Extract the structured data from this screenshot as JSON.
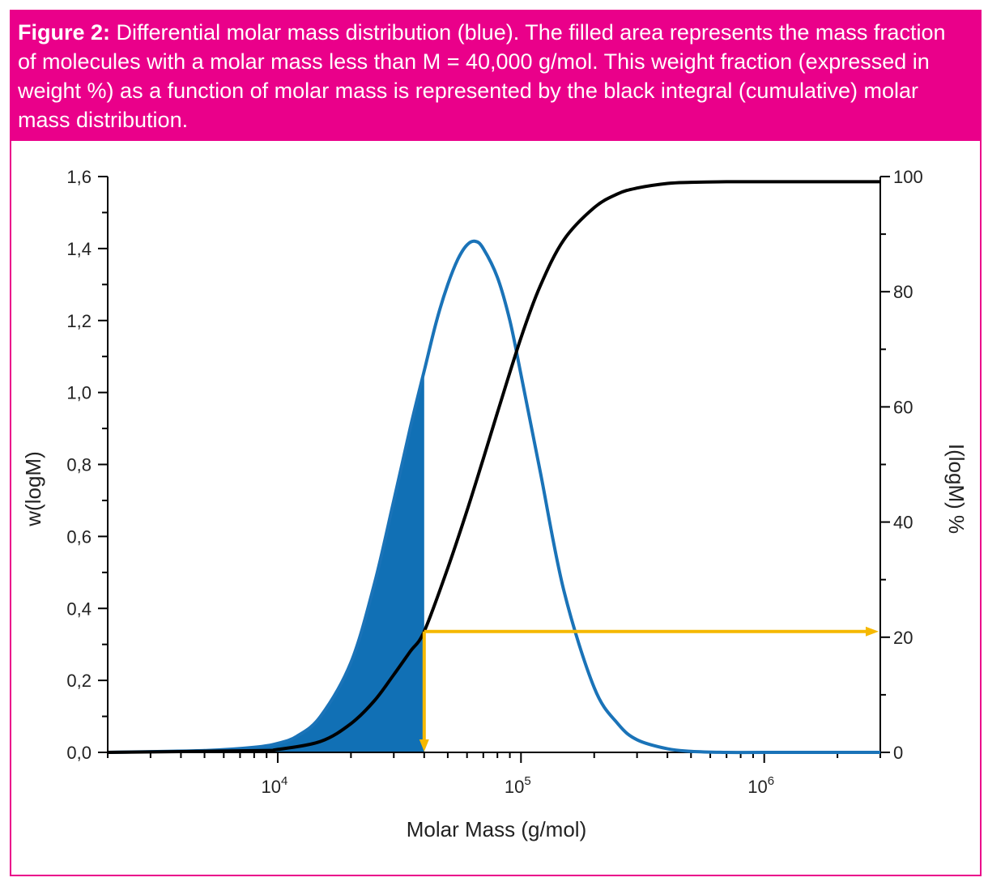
{
  "caption": {
    "label": "Figure 2:",
    "text": " Differential molar mass distribution (blue). The filled area represents the mass fraction of molecules with a molar mass less than M = 40,000 g/mol. This weight fraction (expressed in weight %) as a function of molar mass is represented by the black integral (cumulative) molar mass distribution."
  },
  "colors": {
    "frame": "#ea008a",
    "differential": "#1a73b8",
    "fill": "#1170b5",
    "cumulative": "#000000",
    "marker": "#f5b800"
  },
  "chart_data": {
    "type": "line",
    "xlabel": "Molar Mass (g/mol)",
    "ylabel": "w(logM)",
    "y2label": "I(logM) %",
    "x_scale": "log",
    "xlim": [
      2000,
      3000000
    ],
    "ylim": [
      0,
      1.6
    ],
    "y2lim": [
      0,
      100
    ],
    "x_ticks": [
      {
        "value": 10000,
        "base": "10",
        "exp": "4"
      },
      {
        "value": 100000,
        "base": "10",
        "exp": "5"
      },
      {
        "value": 1000000,
        "base": "10",
        "exp": "6"
      }
    ],
    "y_ticks": [
      {
        "value": 0,
        "label": "0,0"
      },
      {
        "value": 0.2,
        "label": "0,2"
      },
      {
        "value": 0.4,
        "label": "0,4"
      },
      {
        "value": 0.6,
        "label": "0,6"
      },
      {
        "value": 0.8,
        "label": "0,8"
      },
      {
        "value": 1.0,
        "label": "1,0"
      },
      {
        "value": 1.2,
        "label": "1,2"
      },
      {
        "value": 1.4,
        "label": "1,4"
      },
      {
        "value": 1.6,
        "label": "1,6"
      }
    ],
    "y2_ticks": [
      {
        "value": 0,
        "label": "0"
      },
      {
        "value": 20,
        "label": "20"
      },
      {
        "value": 40,
        "label": "40"
      },
      {
        "value": 60,
        "label": "60"
      },
      {
        "value": 80,
        "label": "80"
      },
      {
        "value": 100,
        "label": "100"
      }
    ],
    "series": [
      {
        "axis": "left",
        "x": [
          2000,
          5000,
          8000,
          10000,
          12000,
          15000,
          20000,
          25000,
          30000,
          35000,
          40000,
          45000,
          50000,
          55000,
          60000,
          65000,
          70000,
          80000,
          90000,
          100000,
          120000,
          150000,
          200000,
          250000,
          300000,
          400000,
          500000,
          700000,
          1000000,
          3000000
        ],
        "values": [
          0.0,
          0.005,
          0.014,
          0.025,
          0.045,
          0.1,
          0.25,
          0.47,
          0.7,
          0.9,
          1.06,
          1.2,
          1.3,
          1.37,
          1.41,
          1.42,
          1.4,
          1.32,
          1.2,
          1.05,
          0.78,
          0.45,
          0.18,
          0.08,
          0.035,
          0.01,
          0.003,
          0.0,
          0.0,
          0.0
        ]
      },
      {
        "axis": "right",
        "x": [
          2000,
          8000,
          10000,
          15000,
          20000,
          25000,
          30000,
          35000,
          40000,
          50000,
          60000,
          70000,
          80000,
          100000,
          120000,
          150000,
          200000,
          250000,
          300000,
          400000,
          500000,
          700000,
          1000000,
          3000000
        ],
        "values": [
          0.0,
          0.3,
          0.5,
          1.9,
          5.0,
          9.0,
          13.5,
          17.5,
          21.0,
          32.0,
          42.0,
          51.0,
          59.0,
          72.0,
          81.0,
          89.0,
          94.6,
          97.0,
          98.0,
          98.8,
          99.0,
          99.1,
          99.1,
          99.1
        ]
      }
    ],
    "annotations": {
      "filled_below_x": 40000,
      "marker_x": 40000,
      "marker_percent": 21.0
    }
  }
}
